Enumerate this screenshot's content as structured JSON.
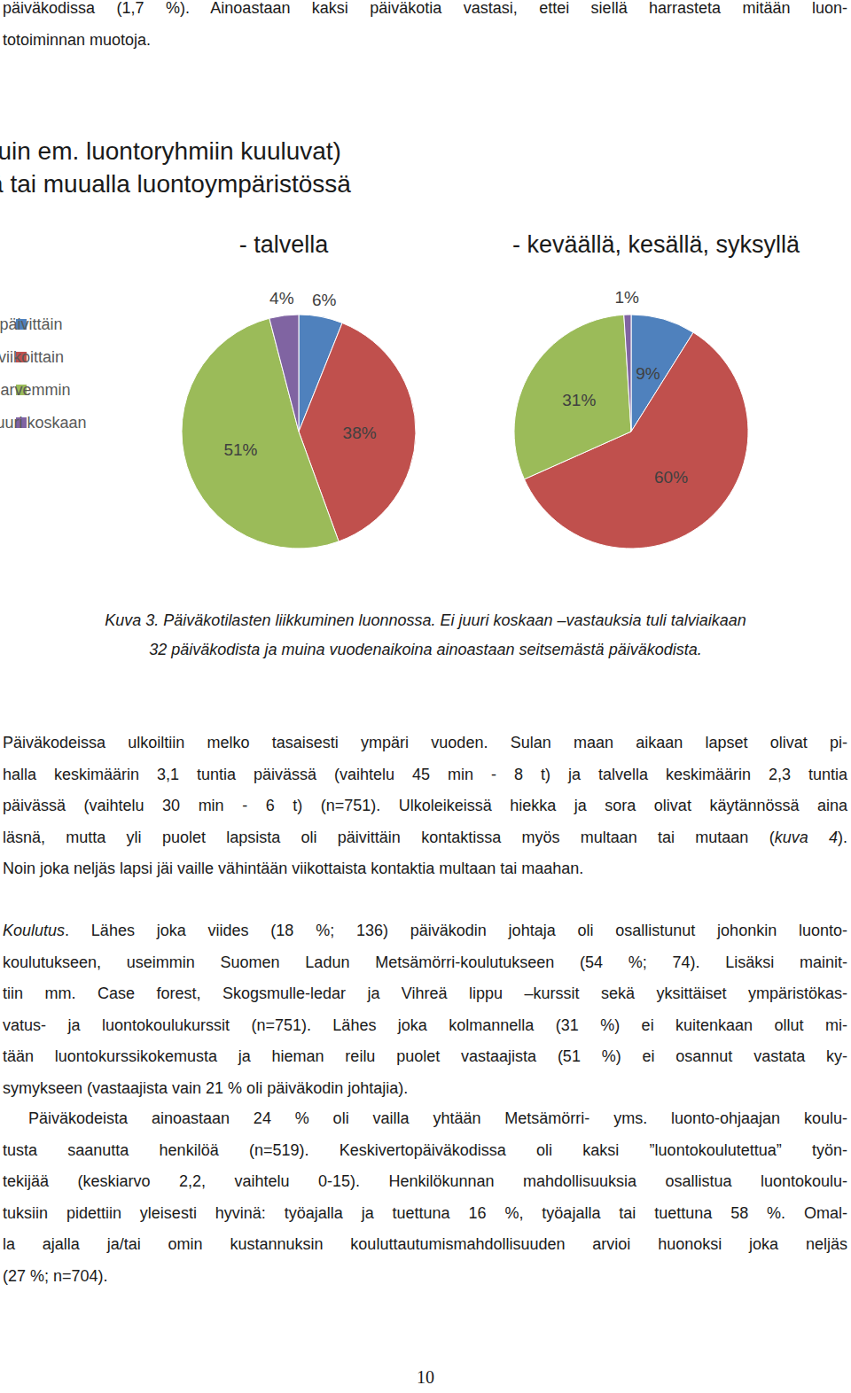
{
  "document": {
    "top_text": [
      "päiväkodissa (1,7 %). Ainoastaan kaksi päiväkotia vastasi, ettei siellä harrasteta mitään luon-",
      "totoiminnan muotoja."
    ],
    "caption": [
      "Kuva 3. Päiväkotilasten liikkuminen luonnossa. Ei juuri koskaan –vastauksia tuli talviaikaan",
      "32 päiväkodista ja muina vuodenaikoina ainoastaan seitsemästä päiväkodista."
    ],
    "paragraphs": [
      [
        [
          "Päiväkodeissa ulkoiltiin melko tasaisesti ympäri vuoden. Sulan maan aikaan lapset olivat pi-"
        ],
        [
          "halla keskimäärin 3,1 tuntia päivässä (vaihtelu 45 min - 8 t) ja talvella keskimäärin 2,3 tuntia"
        ],
        [
          "päivässä (vaihtelu 30 min - 6 t) (n=751). Ulkoleikeissä hiekka ja sora olivat käytännössä aina"
        ],
        [
          "läsnä, mutta yli puolet lapsista oli päivittäin kontaktissa myös multaan tai mutaan (",
          {
            "italic": "kuva 4"
          },
          ")."
        ],
        [
          "Noin joka neljäs lapsi jäi vaille vähintään viikottaista kontaktia multaan tai maahan."
        ]
      ],
      [
        [
          {
            "italic": "Koulutus"
          },
          ". Lähes joka viides (18 %; 136) päiväkodin johtaja oli osallistunut johonkin luonto-"
        ],
        [
          "koulutukseen, useimmin Suomen Ladun Metsämörri-koulutukseen (54 %; 74). Lisäksi mainit-"
        ],
        [
          "tiin mm. Case forest, Skogsmulle-ledar ja Vihreä lippu –kurssit sekä yksittäiset ympäristökas-"
        ],
        [
          "vatus- ja luontokoulukurssit (n=751). Lähes joka kolmannella (31 %) ei kuitenkaan ollut mi-"
        ],
        [
          "tään luontokurssikokemusta ja hieman reilu puolet vastaajista (51 %) ei osannut vastata ky-"
        ],
        [
          "symykseen (vastaajista vain 21 % oli päiväkodin johtajia)."
        ]
      ],
      [
        [
          "Päiväkodeista ainoastaan 24 % oli vailla yhtään Metsämörri- yms. luonto-ohjaajan koulu-"
        ],
        [
          "tusta saanutta henkilöä (n=519). Keskivertopäiväkodissa oli kaksi ”luontokoulutettua” työn-"
        ],
        [
          "tekijää (keskiarvo 2,2, vaihtelu 0-15). Henkilökunnan mahdollisuuksia osallistua luontokoulu-"
        ],
        [
          "tuksiin pidettiin yleisesti hyvinä: työajalla ja tuettuna 16 %, työajalla tai tuettuna 58 %. Omal-"
        ],
        [
          "la ajalla ja/tai omin kustannuksin kouluttautumismahdollisuuden arvioi huonoksi joka neljäs"
        ],
        [
          "(27 %; n=704)."
        ]
      ]
    ],
    "page_number": "10"
  },
  "chart_data": {
    "type": "pie",
    "title": "Ovatko lapset (muut kuin em. luontoryhmiin kuuluvat)\npäiväkodissa metsässä tai muualla luontoympäristössä",
    "categories": [
      "päivittäin",
      "viikoittain",
      "harvemmin",
      "ei juuri koskaan"
    ],
    "colors": [
      "#4f81bd",
      "#c0504d",
      "#9bbb59",
      "#8064a2"
    ],
    "series": [
      {
        "name": "- talvella",
        "values": [
          6,
          38,
          51,
          4
        ],
        "value_labels": [
          "6%",
          "38%",
          "51%",
          "4%"
        ]
      },
      {
        "name": "- keväällä, kesällä, syksyllä",
        "values": [
          9,
          60,
          31,
          1
        ],
        "value_labels": [
          "9%",
          "60%",
          "31%",
          "1%"
        ]
      }
    ],
    "data_labels": true,
    "legend": "left"
  }
}
